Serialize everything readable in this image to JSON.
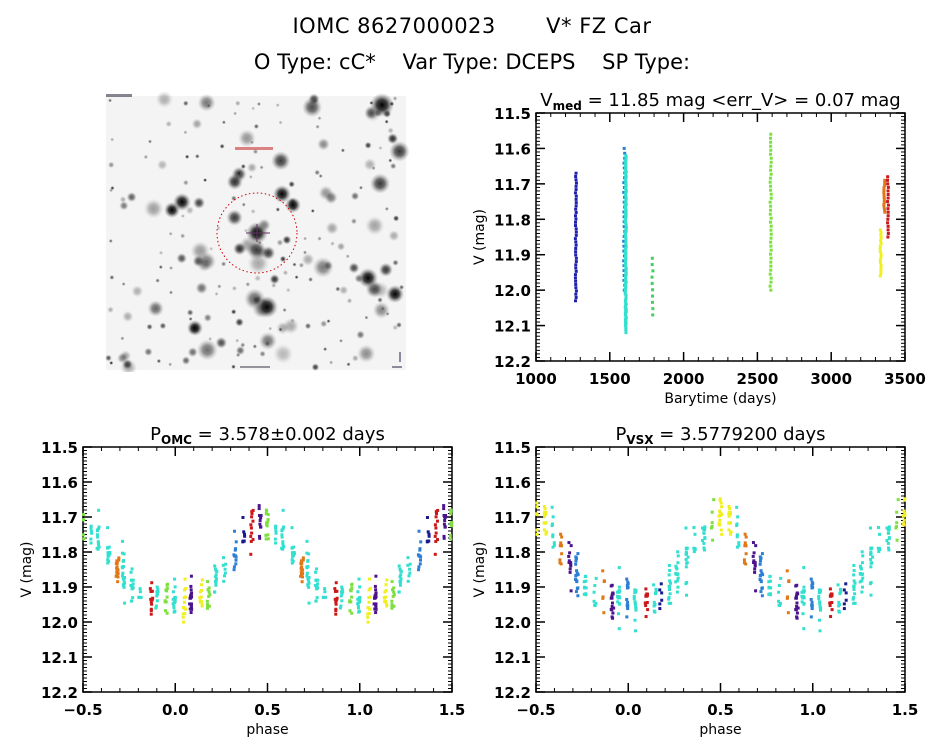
{
  "header": {
    "catalog_id": "IOMC 8627000023",
    "star_name": "V* FZ Car",
    "o_type": "O Type: cC*",
    "var_type": "Var Type: DCEPS",
    "sp_type": "SP Type:"
  },
  "sky_image": {
    "description": "OMC V-band finding chart, inverted grayscale, red dotted circle marks target",
    "marker_color": "#cc0000"
  },
  "chart_data": [
    {
      "id": "light-curve-time",
      "type": "scatter",
      "title_main": "V",
      "title_sub": "med",
      "title_rest": " = 11.85 mag <err_V> = 0.07 mag",
      "xlabel": "Barytime (days)",
      "ylabel": "V (mag)",
      "xlim": [
        1000,
        3500
      ],
      "ylim": [
        12.2,
        11.5
      ],
      "y_inverted": true,
      "xticks": [
        1000,
        1500,
        2000,
        2500,
        3000,
        3500
      ],
      "yticks": [
        11.5,
        11.6,
        11.7,
        11.8,
        11.9,
        12.0,
        12.1,
        12.2
      ],
      "ytick_labels": [
        "11.5",
        "11.6",
        "11.7",
        "11.8",
        "11.9",
        "12.0",
        "12.1",
        "12.2"
      ],
      "series": [
        {
          "name": "epoch-1",
          "x": 1270,
          "ymin": 11.67,
          "ymax": 12.03,
          "color": "#2020b0",
          "n": 40
        },
        {
          "name": "epoch-2",
          "x": 1598,
          "ymin": 11.6,
          "ymax": 12.0,
          "color": "#2b7fd4",
          "n": 30
        },
        {
          "name": "epoch-3",
          "x": 1608,
          "ymin": 11.62,
          "ymax": 12.12,
          "color": "#33e0d0",
          "n": 120
        },
        {
          "name": "epoch-4",
          "x": 1790,
          "ymin": 11.91,
          "ymax": 12.07,
          "color": "#44d060",
          "n": 10
        },
        {
          "name": "epoch-5",
          "x": 2590,
          "ymin": 11.56,
          "ymax": 12.0,
          "color": "#7ee040",
          "n": 40
        },
        {
          "name": "epoch-6",
          "x": 3335,
          "ymin": 11.83,
          "ymax": 11.96,
          "color": "#f0f020",
          "n": 18
        },
        {
          "name": "epoch-7",
          "x": 3360,
          "ymin": 11.69,
          "ymax": 11.78,
          "color": "#e07818",
          "n": 14
        },
        {
          "name": "epoch-8",
          "x": 3385,
          "ymin": 11.68,
          "ymax": 11.85,
          "color": "#cc1818",
          "n": 18
        }
      ]
    },
    {
      "id": "phase-omc",
      "type": "scatter",
      "title_main": "P",
      "title_sub": "OMC",
      "title_rest": " = 3.578±0.002 days",
      "xlabel": "phase",
      "ylabel": "V (mag)",
      "xlim": [
        -0.5,
        1.5
      ],
      "ylim": [
        12.2,
        11.5
      ],
      "y_inverted": true,
      "xticks": [
        -0.5,
        0.0,
        0.5,
        1.0,
        1.5
      ],
      "xtick_labels": [
        "−0.5",
        "0.0",
        "0.5",
        "1.0",
        "1.5"
      ],
      "yticks": [
        11.5,
        11.6,
        11.7,
        11.8,
        11.9,
        12.0,
        12.1,
        12.2
      ],
      "ytick_labels": [
        "11.5",
        "11.6",
        "11.7",
        "11.8",
        "11.9",
        "12.0",
        "12.1",
        "12.2"
      ],
      "curve": {
        "mean": 11.85,
        "amplitude": 0.14,
        "max_phase": 0.48,
        "scatter": 0.05
      },
      "colors": [
        "#33e0d0",
        "#33e0d0",
        "#33e0d0",
        "#33e0d0",
        "#2b7fd4",
        "#1a1a90",
        "#7ee040",
        "#cc1818",
        "#e07818",
        "#f0f020",
        "#4b148c"
      ]
    },
    {
      "id": "phase-vsx",
      "type": "scatter",
      "title_main": "P",
      "title_sub": "VSX",
      "title_rest": " = 3.5779200 days",
      "xlabel": "phase",
      "ylabel": "V (mag)",
      "xlim": [
        -0.5,
        1.5
      ],
      "ylim": [
        12.2,
        11.5
      ],
      "y_inverted": true,
      "xticks": [
        -0.5,
        0.0,
        0.5,
        1.0,
        1.5
      ],
      "xtick_labels": [
        "−0.5",
        "0.0",
        "0.5",
        "1.0",
        "1.5"
      ],
      "yticks": [
        11.5,
        11.6,
        11.7,
        11.8,
        11.9,
        12.0,
        12.1,
        12.2
      ],
      "ytick_labels": [
        "11.5",
        "11.6",
        "11.7",
        "11.8",
        "11.9",
        "12.0",
        "12.1",
        "12.2"
      ],
      "curve": {
        "mean": 11.85,
        "amplitude": 0.14,
        "max_phase": 0.5,
        "scatter": 0.05
      },
      "colors": [
        "#33e0d0",
        "#33e0d0",
        "#33e0d0",
        "#33e0d0",
        "#2b7fd4",
        "#1a1a90",
        "#7ee040",
        "#cc1818",
        "#e07818",
        "#f0f020",
        "#4b148c"
      ]
    }
  ]
}
